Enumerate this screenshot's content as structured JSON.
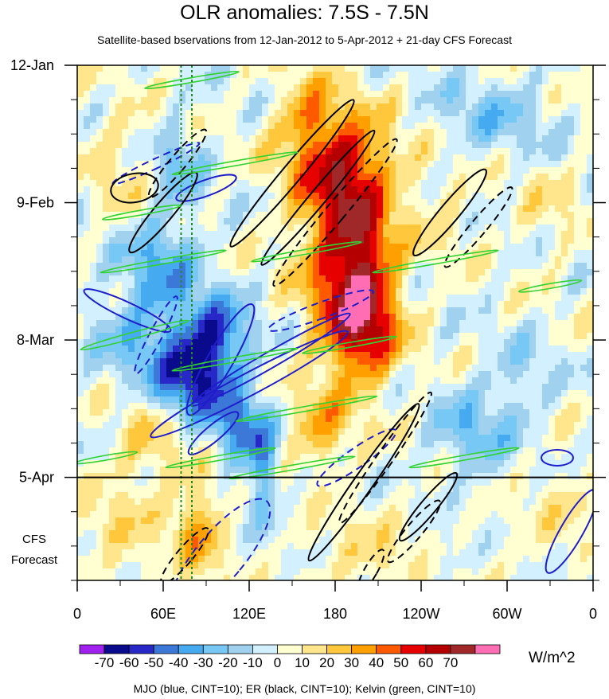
{
  "chart_data": {
    "type": "heatmap",
    "title": "OLR anomalies: 7.5S - 7.5N",
    "subtitle": "Satellite-based bservations from 12-Jan-2012 to 5-Apr-2012 + 21-day CFS Forecast",
    "x_tick_labels": [
      "0",
      "60E",
      "120E",
      "180",
      "120W",
      "60W",
      "0"
    ],
    "x_ticks_deg": [
      0,
      60,
      120,
      180,
      240,
      300,
      360
    ],
    "xlim_deg": [
      0,
      360
    ],
    "y_tick_labels": [
      "12-Jan",
      "9-Feb",
      "8-Mar",
      "5-Apr"
    ],
    "y_ticks_day": [
      0,
      28,
      56,
      84
    ],
    "ylim_day": [
      0,
      105
    ],
    "observation_end_day": 84,
    "forecast_label_line1": "CFS",
    "forecast_label_line2": "Forecast",
    "colorbar": {
      "labels": [
        "-70",
        "-60",
        "-50",
        "-40",
        "-30",
        "-20",
        "-10",
        "0",
        "10",
        "20",
        "30",
        "40",
        "50",
        "60",
        "70"
      ],
      "colors": [
        "#a020f0",
        "#0a0a8c",
        "#2828c8",
        "#3c78d8",
        "#46aaf0",
        "#78c8f5",
        "#a0d2f0",
        "#d2f0ff",
        "#ffffd2",
        "#ffe68c",
        "#ffc83c",
        "#ffa000",
        "#ff5a00",
        "#e60000",
        "#b40000",
        "#a02828",
        "#ff6eb4"
      ],
      "units": "W/m^2"
    },
    "contour_legend": "MJO (blue, CINT=10); ER (black, CINT=10); Kelvin (green, CINT=10)",
    "colors": {
      "mjo": "#1e1ecd",
      "er": "#000000",
      "kelvin": "#32d232",
      "marker": "#228b22"
    }
  }
}
